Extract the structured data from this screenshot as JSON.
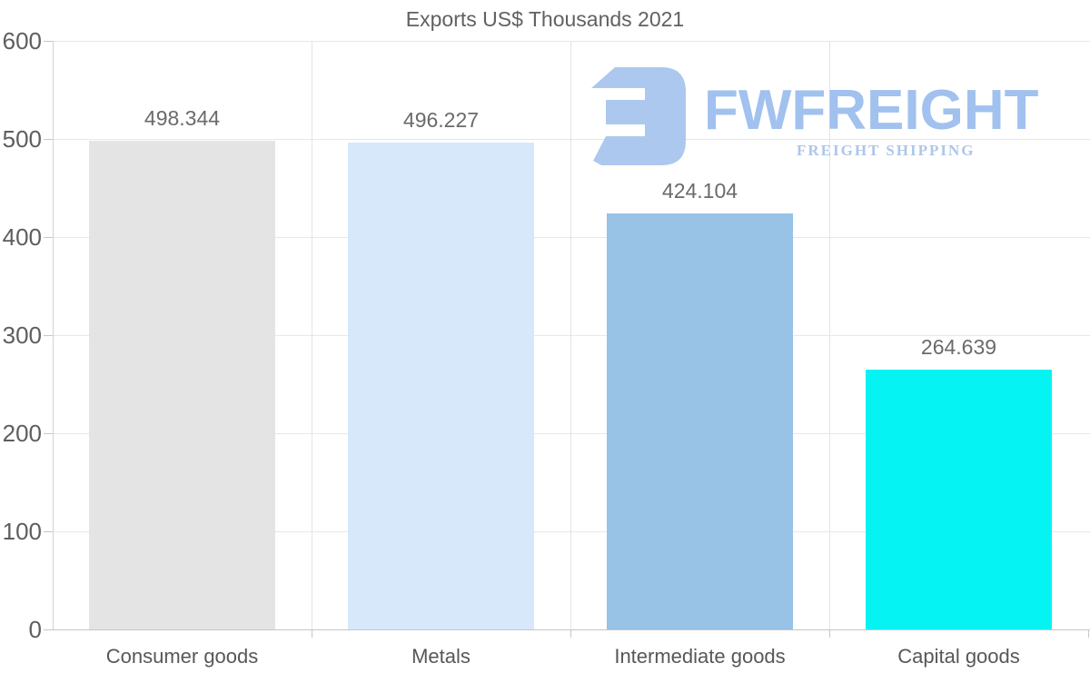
{
  "title": "Exports US$ Thousands 2021",
  "watermark": {
    "brand": "FWFREIGHT",
    "tagline": "FREIGHT SHIPPING",
    "icon": "fwfreight-logo-icon",
    "icon_color": "#a9c6ef",
    "brand_color": "#9dbeee",
    "tagline_color": "#a9c3e9"
  },
  "chart_data": {
    "type": "bar",
    "title": "Exports US$ Thousands 2021",
    "categories": [
      "Consumer goods",
      "Metals",
      "Intermediate goods",
      "Capital goods"
    ],
    "values": [
      498.344,
      496.227,
      424.104,
      264.639
    ],
    "value_labels": [
      "498.344",
      "496.227",
      "424.104",
      "264.639"
    ],
    "bar_colors": [
      "#e4e4e4",
      "#d6e8fa",
      "#98c3e6",
      "#05f3f3"
    ],
    "xlabel": "",
    "ylabel": "",
    "ylim": [
      0,
      600
    ],
    "yticks": [
      0,
      100,
      200,
      300,
      400,
      500,
      600
    ],
    "grid": true,
    "legend": false,
    "text_colors": {
      "title": "#616161",
      "ticks": "#5e5e5e",
      "values": "#6a6a6a",
      "categories": "#575757"
    }
  }
}
